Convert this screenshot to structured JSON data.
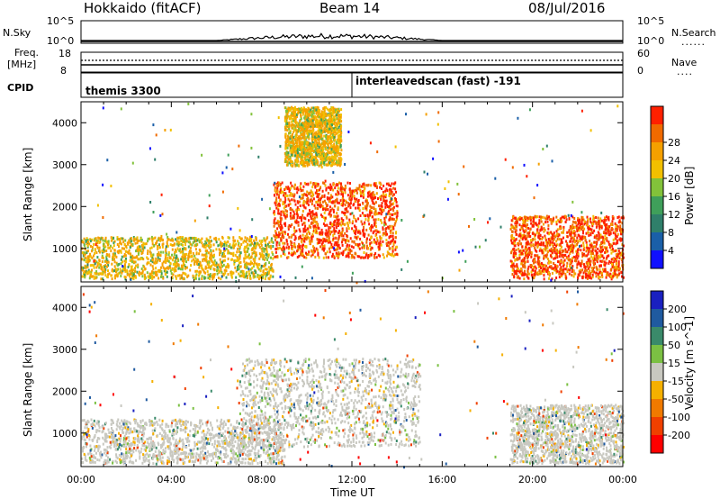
{
  "header": {
    "station": "Hokkaido (fitACF)",
    "beam": "Beam 14",
    "date": "08/Jul/2016"
  },
  "top_panels": {
    "nsky_label": "N.Sky",
    "nsearch_label": "N.Search",
    "nsky_ticks": [
      "10^5",
      "10^0"
    ],
    "nsearch_ticks": [
      "10^5",
      "10^0"
    ],
    "freq_label_line1": "Freq.",
    "freq_label_line2": "[MHz]",
    "freq_ticks": [
      "18",
      "8"
    ],
    "nave_label": "Nave",
    "nave_ticks": [
      "60",
      "0"
    ],
    "cpid_label": "CPID",
    "cpid_segments": [
      {
        "start_hour": 0,
        "end_hour": 12,
        "label": "themis 3300"
      },
      {
        "start_hour": 12,
        "end_hour": 24,
        "label": "interleavedscan (fast) -191"
      }
    ]
  },
  "chart_data": [
    {
      "type": "heatmap",
      "ylabel": "Slant Range [km]",
      "xlabel": "",
      "ylim": [
        200,
        4500
      ],
      "xlim": [
        0,
        24
      ],
      "yticks": [
        "1000",
        "2000",
        "3000",
        "4000"
      ],
      "colorbar": {
        "label": "Power [dB]",
        "range": [
          0,
          32
        ],
        "ticks": [
          "4",
          "8",
          "12",
          "16",
          "20",
          "24",
          "28"
        ],
        "colors": [
          "#1010ff",
          "#1a5fa8",
          "#2f7f6a",
          "#3f9f5a",
          "#82c23a",
          "#f2c000",
          "#f5a000",
          "#f06a00",
          "#ff2000"
        ]
      },
      "regions": [
        {
          "t0": 0.0,
          "t1": 8.5,
          "r0": 300,
          "r1": 1300,
          "level": 20
        },
        {
          "t0": 8.5,
          "t1": 14.0,
          "r0": 800,
          "r1": 2600,
          "level": 28
        },
        {
          "t0": 9.0,
          "t1": 11.5,
          "r0": 3000,
          "r1": 4400,
          "level": 18
        },
        {
          "t0": 19.0,
          "t1": 24.0,
          "r0": 300,
          "r1": 1800,
          "level": 28
        }
      ]
    },
    {
      "type": "heatmap",
      "ylabel": "Slant Range [km]",
      "xlabel": "Time UT",
      "ylim": [
        200,
        4500
      ],
      "xlim": [
        0,
        24
      ],
      "xticks": [
        "00:00",
        "04:00",
        "08:00",
        "12:00",
        "16:00",
        "20:00",
        "00:00"
      ],
      "yticks": [
        "1000",
        "2000",
        "3000",
        "4000"
      ],
      "colorbar": {
        "label": "Velocity [m s^-1]",
        "range": [
          -250,
          250
        ],
        "ticks": [
          "200",
          "100",
          "50",
          "15",
          "-15",
          "-50",
          "-100",
          "-200"
        ],
        "colors": [
          "#1a20c0",
          "#1f5aa0",
          "#3a8a6a",
          "#7bc043",
          "#c8c8c0",
          "#f5b000",
          "#f07a00",
          "#f04000",
          "#ff0000"
        ]
      },
      "regions": [
        {
          "t0": 0.0,
          "t1": 9.0,
          "r0": 300,
          "r1": 1350,
          "level": 0
        },
        {
          "t0": 7.0,
          "t1": 15.0,
          "r0": 700,
          "r1": 2800,
          "level": 0
        },
        {
          "t0": 19.0,
          "t1": 24.0,
          "r0": 300,
          "r1": 1700,
          "level": 0
        }
      ]
    }
  ],
  "colors": {
    "axis": "#000000",
    "ground_gray": "#c8c8c0"
  }
}
